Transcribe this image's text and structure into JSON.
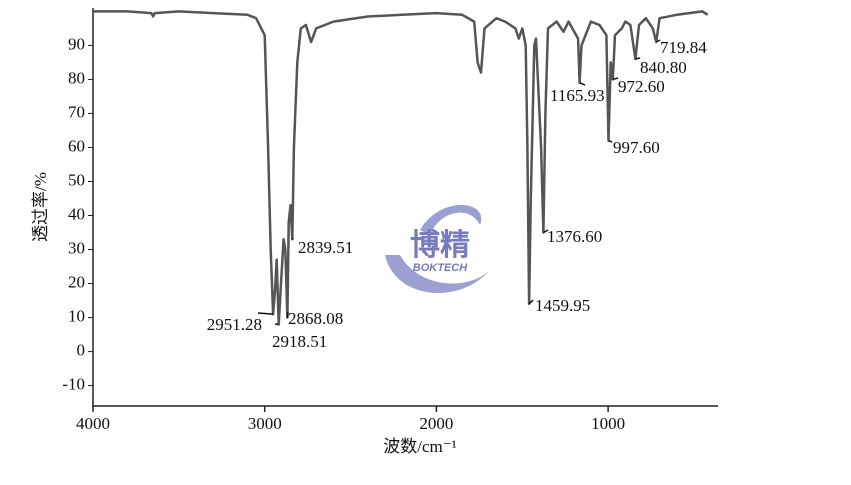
{
  "chart_data": {
    "type": "line",
    "xlabel": "波数/cm⁻¹",
    "ylabel": "透过率/%",
    "watermark": {
      "title": "博精",
      "subtitle": "BOKTECH"
    },
    "xlim": [
      4000,
      360
    ],
    "ylim": [
      -16,
      101
    ],
    "xticks": [
      4000,
      3000,
      2000,
      1000
    ],
    "yticks": [
      -10,
      0,
      10,
      20,
      30,
      40,
      50,
      60,
      70,
      80,
      90
    ],
    "series": [
      {
        "name": "spectrum",
        "color": "#555555",
        "x": [
          4000,
          3800,
          3660,
          3650,
          3640,
          3500,
          3300,
          3100,
          3050,
          3000,
          2980,
          2965,
          2951.28,
          2940,
          2930,
          2918.51,
          2905,
          2890,
          2880,
          2868.08,
          2860,
          2850,
          2839.51,
          2830,
          2810,
          2790,
          2760,
          2730,
          2700,
          2600,
          2400,
          2200,
          2000,
          1850,
          1780,
          1760,
          1740,
          1720,
          1650,
          1600,
          1540,
          1520,
          1500,
          1480,
          1470,
          1459.95,
          1450,
          1430,
          1420,
          1390,
          1376.6,
          1365,
          1350,
          1300,
          1260,
          1230,
          1175,
          1165.93,
          1155,
          1100,
          1050,
          1010,
          997.6,
          985,
          972.6,
          960,
          920,
          900,
          870,
          840.8,
          820,
          780,
          740,
          719.84,
          700,
          600,
          450,
          420
        ],
        "values": [
          100,
          100,
          99.5,
          98.5,
          99.5,
          100,
          99.5,
          99,
          98,
          93,
          60,
          30,
          11,
          18,
          27,
          8,
          20,
          33,
          30,
          10,
          38,
          43,
          33,
          60,
          85,
          95,
          96,
          91,
          95,
          97,
          98.5,
          99,
          99.5,
          99,
          97,
          85,
          82,
          95,
          98,
          97,
          95,
          92,
          95,
          90,
          60,
          14,
          45,
          90,
          92,
          60,
          35,
          70,
          95,
          97,
          94,
          97,
          92,
          79,
          90,
          97,
          96,
          93,
          62,
          85,
          80,
          93,
          95,
          97,
          96,
          86,
          96,
          98,
          95,
          91,
          98,
          99,
          100,
          99
        ]
      }
    ],
    "peaks": [
      {
        "label": "2951.28",
        "x": 2951.28,
        "y": 11
      },
      {
        "label": "2918.51",
        "x": 2918.51,
        "y": 8
      },
      {
        "label": "2868.08",
        "x": 2868.08,
        "y": 10
      },
      {
        "label": "2839.51",
        "x": 2839.51,
        "y": 33
      },
      {
        "label": "1459.95",
        "x": 1459.95,
        "y": 14
      },
      {
        "label": "1376.60",
        "x": 1376.6,
        "y": 35
      },
      {
        "label": "1165.93",
        "x": 1165.93,
        "y": 79
      },
      {
        "label": "997.60",
        "x": 997.6,
        "y": 62
      },
      {
        "label": "972.60",
        "x": 972.6,
        "y": 80
      },
      {
        "label": "840.80",
        "x": 840.8,
        "y": 86
      },
      {
        "label": "719.84",
        "x": 719.84,
        "y": 91
      }
    ]
  }
}
